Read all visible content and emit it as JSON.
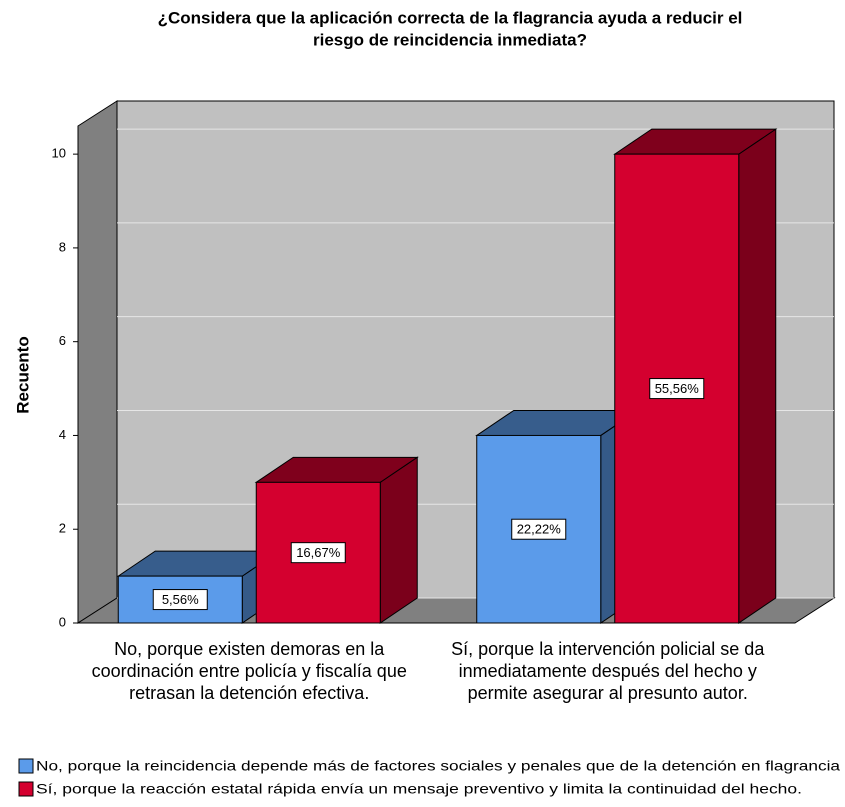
{
  "chart_data": {
    "type": "bar3d",
    "title": [
      "¿Considera que la aplicación correcta de la flagrancia ayuda a reducir el",
      "riesgo de reincidencia inmediata?"
    ],
    "y_label": "Recuento",
    "categories": [
      [
        "No, porque existen demoras en la",
        "coordinación entre policía y fiscalía que",
        "retrasan la detención efectiva."
      ],
      [
        "Sí, porque la intervención policial se da",
        "inmediatamente después del hecho y",
        "permite asegurar al presunto autor."
      ]
    ],
    "series": [
      {
        "name": "No, porque la reincidencia depende más de factores sociales y penales que de la detención en flagrancia",
        "color": "#5b9bea",
        "values": [
          1,
          4
        ],
        "percentages": [
          5.56,
          22.22
        ],
        "percentage_labels": [
          "5,56%",
          "22,22%"
        ]
      },
      {
        "name": "Sí, porque la reacción estatal rápida envía un mensaje preventivo y limita la continuidad del hecho.",
        "color": "#d4002f",
        "values": [
          3,
          10
        ],
        "percentages": [
          16.67,
          55.56
        ],
        "percentage_labels": [
          "16,67%",
          "55,56%"
        ]
      }
    ],
    "ylim": [
      0,
      10.6
    ],
    "yticks": [
      0,
      2,
      4,
      6,
      8,
      10
    ],
    "grid": true
  }
}
